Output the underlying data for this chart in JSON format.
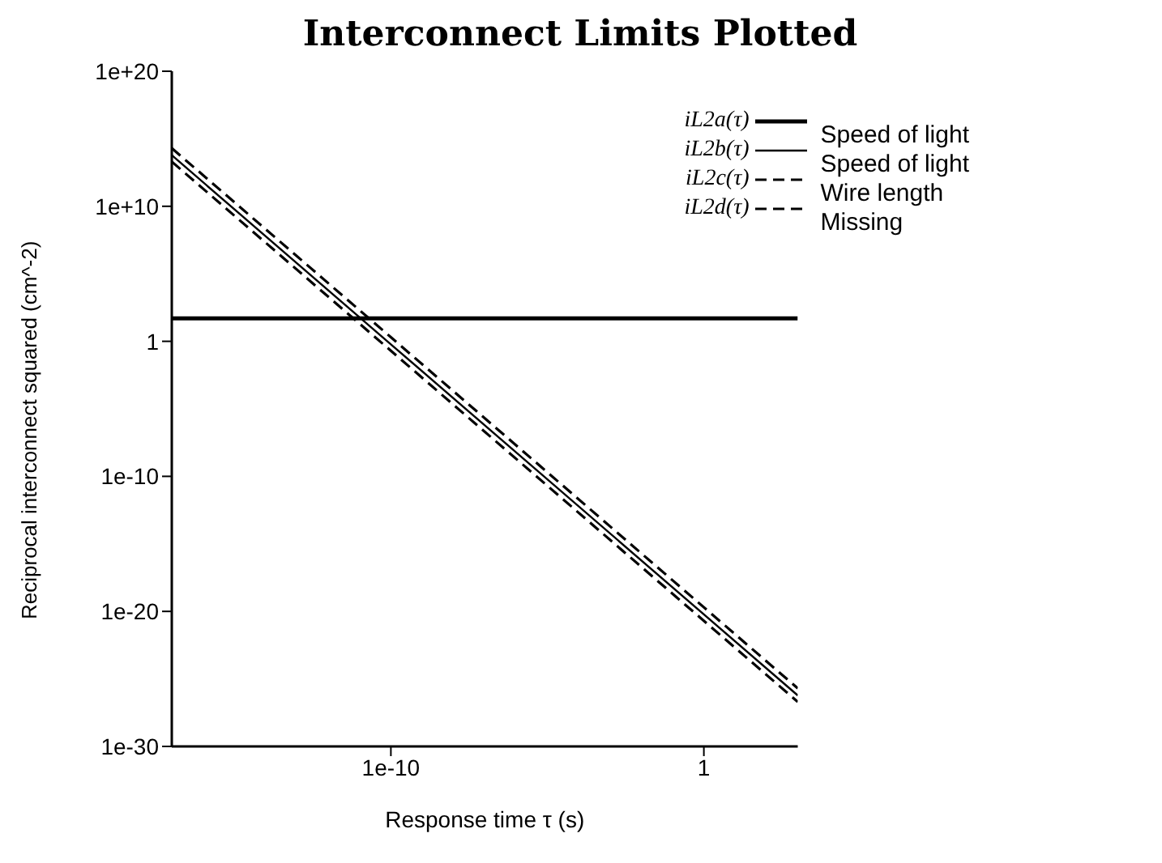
{
  "chart_data": {
    "type": "line",
    "title": "Interconnect Limits Plotted",
    "xlabel": "Response time τ (s)",
    "ylabel": "Reciprocal interconnect squared (cm^-2)",
    "log": "xy",
    "grid": false,
    "legend": "top right",
    "marker": "none",
    "xlim": [
      1e-17,
      1000
    ],
    "ylim": [
      1e-30,
      1e+20
    ],
    "xticks": [
      {
        "value": 1e-10,
        "label": "1e-10"
      },
      1
    ],
    "yticks": [
      {
        "value": 1e-30,
        "label": "1e-30"
      },
      {
        "value": 1e-20,
        "label": "1e-20"
      },
      {
        "value": 1e-10,
        "label": "1e-10"
      },
      1,
      {
        "value": 10000000000.0,
        "label": "1e+10"
      },
      {
        "value": 1e+20,
        "label": "1e+20"
      }
    ],
    "annotations": [
      "Speed of light",
      "Speed of light",
      "Wire length",
      "Missing"
    ],
    "x": [
      1e-17,
      1e-10,
      1000
    ],
    "series": [
      {
        "name": "iL2a(τ)",
        "color": "#000000",
        "line_style": "solid",
        "values": [
          50,
          50,
          50
        ]
      },
      {
        "name": "iL2b(τ)",
        "color": "#000000",
        "line_style": "solid",
        "values": [
          60000000000000.0,
          0.6,
          6e-27
        ]
      },
      {
        "name": "iL2c(τ)",
        "color": "#000000",
        "line_style": "dashed",
        "values": [
          200000000000000.0,
          2,
          2e-26
        ]
      },
      {
        "name": "iL2d(τ)",
        "color": "#000000",
        "line_style": "dashed",
        "values": [
          20000000000000.0,
          0.2,
          2e-27
        ]
      }
    ]
  }
}
